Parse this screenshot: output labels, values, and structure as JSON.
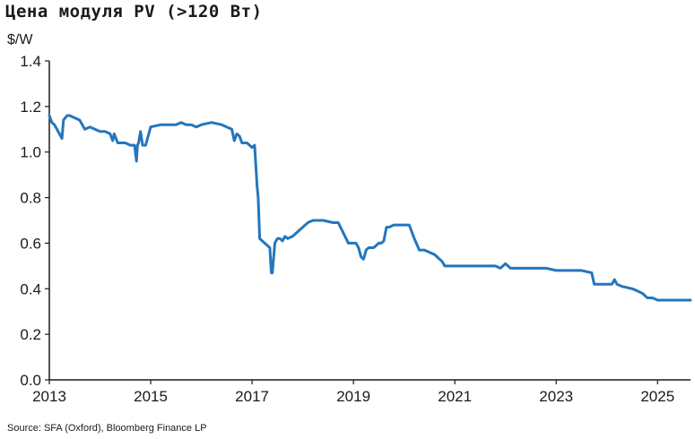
{
  "chart_data": {
    "type": "line",
    "title": "Цена модуля PV (>120 Вт)",
    "ylabel": "$/W",
    "source": "Source: SFA (Oxford), Bloomberg Finance LP",
    "xlim": [
      2013.0,
      2025.65
    ],
    "ylim": [
      0,
      1.4
    ],
    "xticks": [
      2013,
      2015,
      2017,
      2019,
      2021,
      2023,
      2025
    ],
    "yticks": [
      "0.0",
      "0.2",
      "0.4",
      "0.6",
      "0.8",
      "1.0",
      "1.2",
      "1.4"
    ],
    "grid": false,
    "line_color": "#2476bd",
    "series": [
      {
        "x": [
          2013.0,
          2013.05,
          2013.1,
          2013.2,
          2013.25,
          2013.28,
          2013.35,
          2013.4,
          2013.6,
          2013.65,
          2013.7,
          2013.8,
          2013.9,
          2014.0,
          2014.1,
          2014.2,
          2014.25,
          2014.28,
          2014.35,
          2014.4,
          2014.5,
          2014.6,
          2014.68,
          2014.72,
          2014.74,
          2014.76,
          2014.8,
          2014.84,
          2014.9,
          2015.0,
          2015.2,
          2015.5,
          2015.6,
          2015.7,
          2015.8,
          2015.9,
          2016.0,
          2016.2,
          2016.4,
          2016.5,
          2016.6,
          2016.65,
          2016.7,
          2016.75,
          2016.8,
          2016.9,
          2017.0,
          2017.05,
          2017.1,
          2017.12,
          2017.15,
          2017.2,
          2017.25,
          2017.35,
          2017.38,
          2017.4,
          2017.45,
          2017.5,
          2017.55,
          2017.6,
          2017.65,
          2017.7,
          2017.8,
          2018.0,
          2018.1,
          2018.2,
          2018.4,
          2018.6,
          2018.7,
          2018.9,
          2019.05,
          2019.1,
          2019.15,
          2019.2,
          2019.25,
          2019.3,
          2019.4,
          2019.5,
          2019.55,
          2019.6,
          2019.65,
          2019.7,
          2019.8,
          2019.95,
          2020.1,
          2020.2,
          2020.3,
          2020.4,
          2020.5,
          2020.6,
          2020.75,
          2020.8,
          2021.0,
          2021.5,
          2021.8,
          2021.9,
          2022.0,
          2022.1,
          2022.5,
          2022.8,
          2023.0,
          2023.5,
          2023.7,
          2023.75,
          2024.0,
          2024.1,
          2024.15,
          2024.2,
          2024.3,
          2024.5,
          2024.6,
          2024.7,
          2024.8,
          2024.9,
          2025.0,
          2025.1,
          2025.3,
          2025.5,
          2025.65
        ],
        "y": [
          1.16,
          1.13,
          1.12,
          1.08,
          1.06,
          1.14,
          1.16,
          1.16,
          1.14,
          1.12,
          1.1,
          1.11,
          1.1,
          1.09,
          1.09,
          1.08,
          1.05,
          1.08,
          1.04,
          1.04,
          1.04,
          1.03,
          1.03,
          0.96,
          1.03,
          1.04,
          1.09,
          1.03,
          1.03,
          1.11,
          1.12,
          1.12,
          1.13,
          1.12,
          1.12,
          1.11,
          1.12,
          1.13,
          1.12,
          1.11,
          1.1,
          1.05,
          1.08,
          1.07,
          1.04,
          1.04,
          1.02,
          1.03,
          0.85,
          0.8,
          0.62,
          0.61,
          0.6,
          0.58,
          0.47,
          0.47,
          0.6,
          0.62,
          0.62,
          0.61,
          0.63,
          0.62,
          0.63,
          0.67,
          0.69,
          0.7,
          0.7,
          0.69,
          0.69,
          0.6,
          0.6,
          0.58,
          0.54,
          0.53,
          0.57,
          0.58,
          0.58,
          0.6,
          0.6,
          0.61,
          0.67,
          0.67,
          0.68,
          0.68,
          0.68,
          0.62,
          0.57,
          0.57,
          0.56,
          0.55,
          0.52,
          0.5,
          0.5,
          0.5,
          0.5,
          0.49,
          0.51,
          0.49,
          0.49,
          0.49,
          0.48,
          0.48,
          0.47,
          0.42,
          0.42,
          0.42,
          0.44,
          0.42,
          0.41,
          0.4,
          0.39,
          0.38,
          0.36,
          0.36,
          0.35,
          0.35,
          0.35,
          0.35,
          0.35
        ]
      }
    ]
  }
}
